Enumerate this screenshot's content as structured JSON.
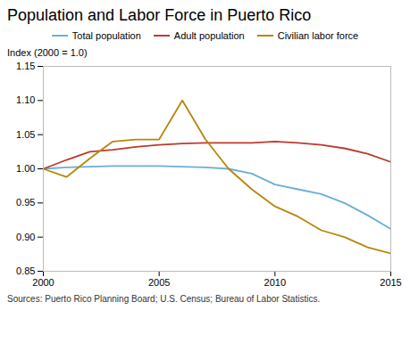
{
  "chart_data": {
    "type": "line",
    "title": "Population and Labor Force in Puerto Rico",
    "y_label": "Index (2000 = 1.0)",
    "source": "Sources: Puerto Rico Planning Board; U.S. Census; Bureau of Labor Statistics.",
    "x": [
      2000,
      2001,
      2002,
      2003,
      2004,
      2005,
      2006,
      2007,
      2008,
      2009,
      2010,
      2011,
      2012,
      2013,
      2014,
      2015
    ],
    "series": [
      {
        "name": "Total population",
        "color": "#6baed6",
        "values": [
          1.0,
          1.002,
          1.003,
          1.004,
          1.004,
          1.004,
          1.003,
          1.002,
          1.0,
          0.993,
          0.977,
          0.97,
          0.963,
          0.95,
          0.932,
          0.912
        ]
      },
      {
        "name": "Adult population",
        "color": "#c0392b",
        "values": [
          1.0,
          1.013,
          1.025,
          1.028,
          1.032,
          1.035,
          1.037,
          1.038,
          1.038,
          1.038,
          1.04,
          1.038,
          1.035,
          1.03,
          1.022,
          1.01
        ]
      },
      {
        "name": "Civilian labor force",
        "color": "#b8860b",
        "values": [
          1.0,
          0.988,
          1.015,
          1.04,
          1.043,
          1.043,
          1.1,
          1.043,
          1.0,
          0.97,
          0.945,
          0.93,
          0.91,
          0.9,
          0.885,
          0.876
        ]
      }
    ],
    "xlim": [
      2000,
      2015
    ],
    "xticks": [
      2000,
      2005,
      2010,
      2015
    ],
    "ylim": [
      0.85,
      1.15
    ],
    "yticks": [
      0.85,
      {
        "value": 0.9,
        "label": "0.90"
      },
      0.95,
      {
        "value": 1.0,
        "label": "1.00"
      },
      1.05,
      {
        "value": 1.1,
        "label": "1.10"
      },
      1.15
    ],
    "grid": false,
    "legend": "top"
  }
}
